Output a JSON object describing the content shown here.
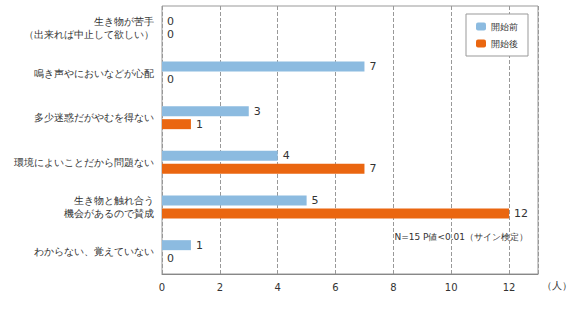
{
  "chart_data": {
    "type": "bar",
    "orientation": "horizontal",
    "categories": [
      "生き物が苦手\n（出来れば中止して欲しい）",
      "鳴き声やにおいなどが心配",
      "多少迷惑だがやむを得ない",
      "環境によいことだから問題ない",
      "生き物と触れ合う\n機会があるので賛成",
      "わからない、覚えていない"
    ],
    "series": [
      {
        "name": "開始前",
        "color": "#8cbbe0",
        "values": [
          0,
          7,
          3,
          4,
          5,
          1
        ]
      },
      {
        "name": "開始後",
        "color": "#ea6610",
        "values": [
          0,
          0,
          1,
          7,
          12,
          0
        ]
      }
    ],
    "xlabel": "（人）",
    "xlim": [
      0,
      13
    ],
    "xticks": [
      0,
      2,
      4,
      6,
      8,
      10,
      12
    ],
    "grid": true,
    "legend": "top-right",
    "data_labels": true,
    "annotations": [
      "N=15 P値<0.01（サイン検定）"
    ]
  }
}
